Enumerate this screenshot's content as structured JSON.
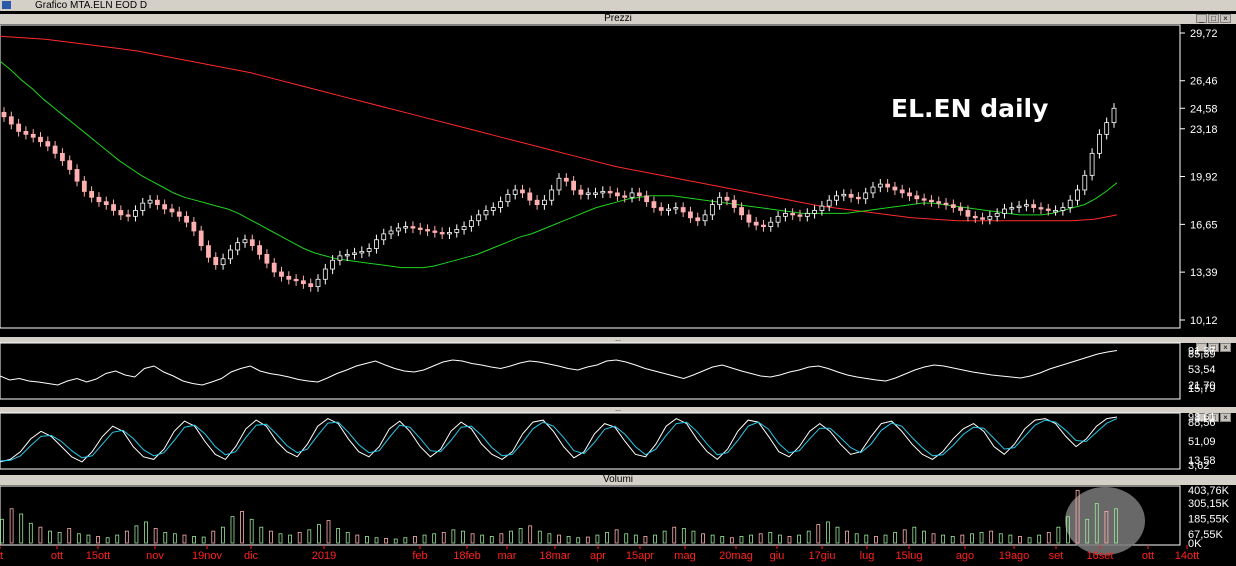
{
  "window": {
    "title": "Grafico MTA.ELN EOD D"
  },
  "panels": {
    "prices": {
      "header": "Prezzi",
      "annotation": "EL.EN daily",
      "last_value_label": "24,58"
    },
    "rsi": {
      "header": "..."
    },
    "stoch": {
      "header": "..."
    },
    "volume": {
      "header": "Volumi"
    }
  },
  "colors": {
    "background": "#000000",
    "sma_long": "#ff2a2a",
    "sma_short": "#1fd41f",
    "up_candle": "#ffffff",
    "down_candle": "#ffb0b0",
    "oscillator_main": "#ffffff",
    "stoch_k": "#ffffff",
    "stoch_d": "#27c6e6",
    "volume_up": "#9be79b",
    "volume_down": "#ffb0b0",
    "axis_labels_x": "#ff2020"
  },
  "chart_data": [
    {
      "type": "line",
      "subtype": "candlestick",
      "title": "EL.EN daily",
      "x_tick_labels": [
        "t",
        "ott",
        "15ott",
        "nov",
        "19nov",
        "dic",
        "2019",
        "feb",
        "18feb",
        "mar",
        "18mar",
        "apr",
        "15apr",
        "mag",
        "20mag",
        "giu",
        "17giu",
        "lug",
        "15lug",
        "ago",
        "19ago",
        "set",
        "16set",
        "ott",
        "14ott"
      ],
      "y_ticks": [
        "29,72",
        "26,46",
        "24,58",
        "23,18",
        "19,92",
        "16,65",
        "13,39",
        "10,12"
      ],
      "ylim": [
        10.12,
        29.72
      ],
      "close_series": [
        24.0,
        23.5,
        23.0,
        22.8,
        22.6,
        22.3,
        22.0,
        21.5,
        21.0,
        20.4,
        19.6,
        18.9,
        18.5,
        18.2,
        18.0,
        17.6,
        17.3,
        17.2,
        17.6,
        18.1,
        18.3,
        18.0,
        17.7,
        17.5,
        17.2,
        16.8,
        16.2,
        15.2,
        14.4,
        13.9,
        14.3,
        14.9,
        15.4,
        15.6,
        15.2,
        14.6,
        14.0,
        13.4,
        13.1,
        12.9,
        12.8,
        12.6,
        12.4,
        12.9,
        13.6,
        14.2,
        14.5,
        14.6,
        14.7,
        14.8,
        15.0,
        15.6,
        16.0,
        16.2,
        16.4,
        16.5,
        16.4,
        16.3,
        16.2,
        16.1,
        16.0,
        16.1,
        16.3,
        16.5,
        16.9,
        17.3,
        17.6,
        17.8,
        18.2,
        18.7,
        19.0,
        18.8,
        18.3,
        18.0,
        18.3,
        19.0,
        19.8,
        19.6,
        19.0,
        18.7,
        18.8,
        18.8,
        18.9,
        18.8,
        18.6,
        18.5,
        18.8,
        18.6,
        18.2,
        17.8,
        17.6,
        17.7,
        17.8,
        17.5,
        17.1,
        16.9,
        17.3,
        18.0,
        18.5,
        18.3,
        17.8,
        17.3,
        16.8,
        16.6,
        16.5,
        16.8,
        17.2,
        17.4,
        17.3,
        17.2,
        17.4,
        17.6,
        17.9,
        18.3,
        18.6,
        18.7,
        18.5,
        18.4,
        18.8,
        19.2,
        19.4,
        19.2,
        19.0,
        18.8,
        18.6,
        18.4,
        18.3,
        18.2,
        18.1,
        18.0,
        17.8,
        17.6,
        17.2,
        17.1,
        17.0,
        17.2,
        17.4,
        17.7,
        17.8,
        17.9,
        18.0,
        17.8,
        17.7,
        17.6,
        17.6,
        17.8,
        18.3,
        19.0,
        20.0,
        21.5,
        22.8,
        23.6,
        24.58
      ],
      "sma_short": [
        27.8,
        27.2,
        26.5,
        25.9,
        25.2,
        24.6,
        24.0,
        23.4,
        22.8,
        22.2,
        21.6,
        21.0,
        20.5,
        20.0,
        19.6,
        19.2,
        18.8,
        18.5,
        18.3,
        18.1,
        17.9,
        17.7,
        17.4,
        17.0,
        16.6,
        16.2,
        15.8,
        15.4,
        15.0,
        14.7,
        14.5,
        14.3,
        14.2,
        14.1,
        14.0,
        13.9,
        13.8,
        13.7,
        13.7,
        13.7,
        13.8,
        14.0,
        14.2,
        14.4,
        14.6,
        14.9,
        15.2,
        15.5,
        15.8,
        16.0,
        16.3,
        16.6,
        16.9,
        17.2,
        17.5,
        17.8,
        18.0,
        18.2,
        18.4,
        18.5,
        18.6,
        18.6,
        18.6,
        18.5,
        18.4,
        18.3,
        18.2,
        18.1,
        18.0,
        17.9,
        17.8,
        17.7,
        17.6,
        17.5,
        17.4,
        17.4,
        17.4,
        17.4,
        17.4,
        17.5,
        17.6,
        17.7,
        17.8,
        17.9,
        18.0,
        18.1,
        18.1,
        18.0,
        17.9,
        17.8,
        17.7,
        17.6,
        17.5,
        17.4,
        17.3,
        17.3,
        17.3,
        17.4,
        17.6,
        17.8,
        18.0,
        18.4,
        18.9,
        19.5
      ],
      "sma_long": [
        29.5,
        29.4,
        29.3,
        29.1,
        28.9,
        28.7,
        28.5,
        28.2,
        27.9,
        27.6,
        27.3,
        27.0,
        26.6,
        26.2,
        25.8,
        25.4,
        25.0,
        24.6,
        24.2,
        23.8,
        23.4,
        23.0,
        22.6,
        22.2,
        21.8,
        21.4,
        21.0,
        20.6,
        20.3,
        20.0,
        19.7,
        19.4,
        19.1,
        18.8,
        18.5,
        18.2,
        17.9,
        17.7,
        17.5,
        17.3,
        17.1,
        17.0,
        16.9,
        16.9,
        16.9,
        16.9,
        16.9,
        16.9,
        17.0,
        17.3
      ]
    },
    {
      "type": "line",
      "title": "",
      "y_ticks": [
        "91,27",
        "85,39",
        "53,54",
        "21,70",
        "15,79"
      ],
      "series": [
        {
          "values": [
            40,
            32,
            35,
            30,
            28,
            25,
            22,
            30,
            35,
            28,
            34,
            45,
            50,
            42,
            38,
            55,
            60,
            48,
            40,
            30,
            25,
            22,
            28,
            35,
            48,
            55,
            60,
            50,
            45,
            42,
            38,
            33,
            30,
            28,
            36,
            45,
            52,
            60,
            65,
            70,
            62,
            55,
            50,
            48,
            52,
            60,
            68,
            72,
            70,
            65,
            62,
            58,
            55,
            60,
            66,
            70,
            68,
            64,
            60,
            55,
            52,
            58,
            62,
            70,
            72,
            68,
            62,
            55,
            50,
            45,
            40,
            35,
            42,
            50,
            58,
            62,
            56,
            50,
            45,
            40,
            38,
            42,
            48,
            52,
            58,
            60,
            55,
            48,
            42,
            38,
            35,
            32,
            30,
            36,
            44,
            52,
            58,
            62,
            60,
            56,
            52,
            48,
            45,
            42,
            40,
            38,
            36,
            40,
            46,
            54,
            60,
            66,
            72,
            78,
            84,
            88,
            91
          ]
        }
      ]
    },
    {
      "type": "line",
      "title": "",
      "y_ticks": [
        "98,61",
        "88,56",
        "51,09",
        "13,58",
        "3,62"
      ],
      "series": [
        {
          "values": [
            10,
            15,
            30,
            55,
            70,
            60,
            40,
            20,
            10,
            30,
            60,
            80,
            70,
            40,
            20,
            15,
            35,
            70,
            90,
            80,
            50,
            25,
            15,
            40,
            75,
            92,
            80,
            50,
            30,
            20,
            45,
            80,
            95,
            85,
            55,
            30,
            20,
            40,
            75,
            90,
            70,
            40,
            20,
            35,
            70,
            88,
            75,
            45,
            25,
            15,
            30,
            65,
            88,
            92,
            70,
            40,
            18,
            30,
            65,
            85,
            78,
            50,
            25,
            20,
            45,
            80,
            95,
            85,
            55,
            30,
            15,
            35,
            70,
            92,
            88,
            60,
            30,
            20,
            40,
            70,
            85,
            70,
            45,
            25,
            30,
            60,
            85,
            90,
            70,
            45,
            25,
            15,
            30,
            55,
            75,
            85,
            70,
            40,
            25,
            45,
            75,
            92,
            95,
            85,
            60,
            40,
            55,
            80,
            95,
            98
          ]
        },
        {
          "values": [
            12,
            13,
            22,
            42,
            60,
            62,
            50,
            32,
            18,
            22,
            45,
            68,
            72,
            56,
            34,
            22,
            28,
            52,
            78,
            82,
            65,
            40,
            24,
            30,
            58,
            82,
            84,
            64,
            42,
            28,
            35,
            62,
            86,
            88,
            68,
            44,
            28,
            32,
            58,
            82,
            78,
            56,
            32,
            30,
            52,
            78,
            80,
            62,
            38,
            22,
            25,
            48,
            75,
            88,
            80,
            58,
            32,
            26,
            48,
            74,
            80,
            64,
            40,
            24,
            35,
            62,
            85,
            88,
            70,
            45,
            24,
            28,
            52,
            80,
            88,
            74,
            46,
            28,
            32,
            55,
            76,
            76,
            58,
            38,
            28,
            45,
            72,
            86,
            80,
            58,
            38,
            22,
            24,
            42,
            64,
            78,
            76,
            56,
            35,
            38,
            60,
            82,
            92,
            88,
            72,
            52,
            50,
            68,
            86,
            95
          ]
        }
      ]
    },
    {
      "type": "bar",
      "title": "",
      "y_ticks": [
        "403,76K",
        "305,15K",
        "185,55K",
        "67,55K",
        "0K"
      ],
      "values": [
        180,
        260,
        220,
        150,
        120,
        90,
        80,
        110,
        70,
        60,
        50,
        40,
        60,
        90,
        130,
        160,
        110,
        80,
        70,
        60,
        50,
        45,
        90,
        120,
        200,
        240,
        180,
        120,
        90,
        70,
        60,
        80,
        100,
        140,
        170,
        110,
        80,
        60,
        50,
        40,
        35,
        30,
        40,
        50,
        60,
        70,
        80,
        100,
        90,
        70,
        60,
        50,
        70,
        90,
        110,
        130,
        90,
        70,
        60,
        50,
        40,
        45,
        60,
        80,
        100,
        70,
        60,
        50,
        60,
        90,
        120,
        110,
        90,
        70,
        60,
        50,
        40,
        50,
        60,
        70,
        80,
        60,
        50,
        60,
        90,
        140,
        160,
        120,
        90,
        70,
        60,
        50,
        60,
        80,
        100,
        120,
        90,
        70,
        60,
        50,
        60,
        70,
        80,
        90,
        70,
        60,
        50,
        40,
        60,
        80,
        120,
        200,
        400,
        180,
        300,
        240,
        260
      ]
    }
  ]
}
